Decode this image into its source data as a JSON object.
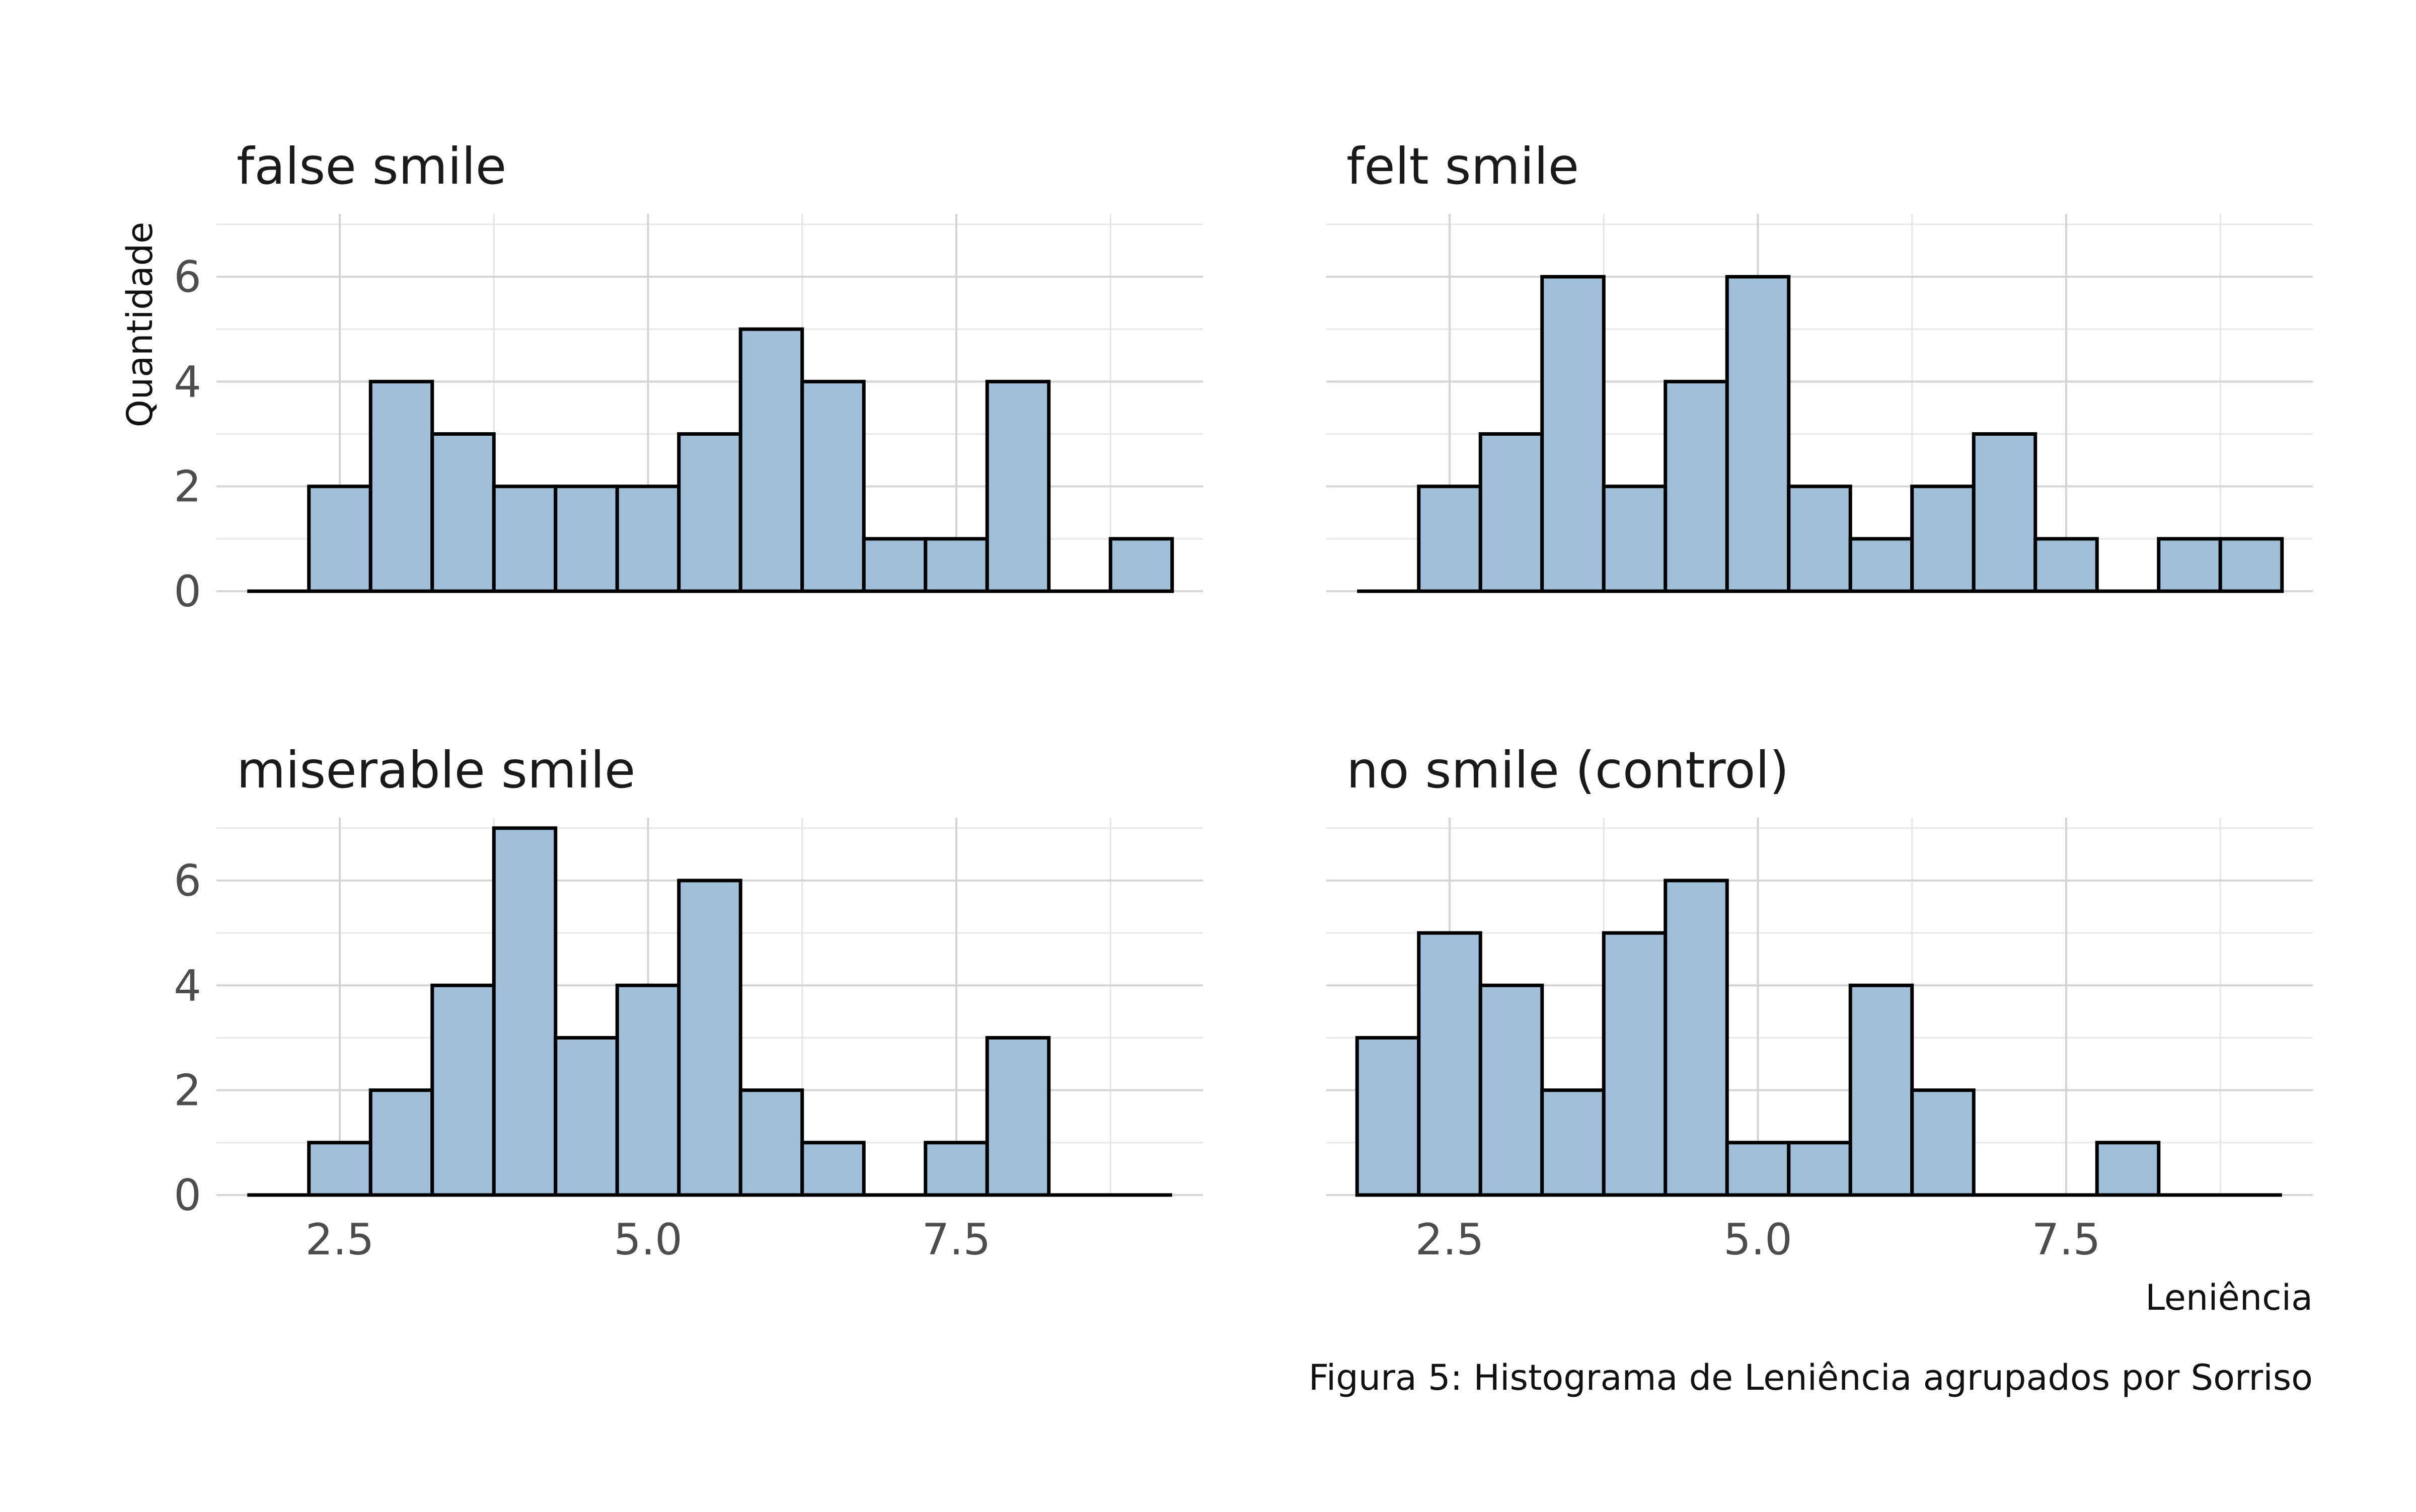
{
  "chart_data": {
    "type": "bar",
    "layout": "facet-grid 2x2",
    "ylabel": "Quantidade",
    "xlabel": "Leniência",
    "caption": "Figura 5: Histograma de Leniência agrupados por Sorriso",
    "bin_width": 0.5,
    "bin_starts": [
      1.75,
      2.25,
      2.75,
      3.25,
      3.75,
      4.25,
      4.75,
      5.25,
      5.75,
      6.25,
      6.75,
      7.25,
      7.75,
      8.25,
      8.75
    ],
    "x_ticks": [
      2.5,
      5.0,
      7.5
    ],
    "x_tick_labels": [
      "2.5",
      "5.0",
      "7.5"
    ],
    "xlim": [
      1.5,
      9.5
    ],
    "y_ticks": [
      0,
      2,
      4,
      6
    ],
    "y_tick_labels": [
      "0",
      "2",
      "4",
      "6"
    ],
    "ylim": [
      0,
      7.2
    ],
    "grid": true,
    "fill_color": "#a2bfda",
    "edge_color": "#000000",
    "series": [
      {
        "name": "false smile",
        "values": [
          0,
          2,
          4,
          3,
          2,
          2,
          2,
          3,
          5,
          4,
          1,
          1,
          4,
          0,
          1
        ]
      },
      {
        "name": "felt smile",
        "values": [
          0,
          2,
          3,
          6,
          2,
          4,
          6,
          2,
          1,
          2,
          3,
          1,
          0,
          1,
          1
        ]
      },
      {
        "name": "miserable smile",
        "values": [
          0,
          1,
          2,
          4,
          7,
          3,
          4,
          6,
          2,
          1,
          0,
          1,
          3,
          0,
          0
        ]
      },
      {
        "name": "no smile (control)",
        "values": [
          3,
          5,
          4,
          2,
          5,
          6,
          1,
          1,
          4,
          2,
          0,
          0,
          1,
          0,
          0
        ]
      }
    ]
  }
}
